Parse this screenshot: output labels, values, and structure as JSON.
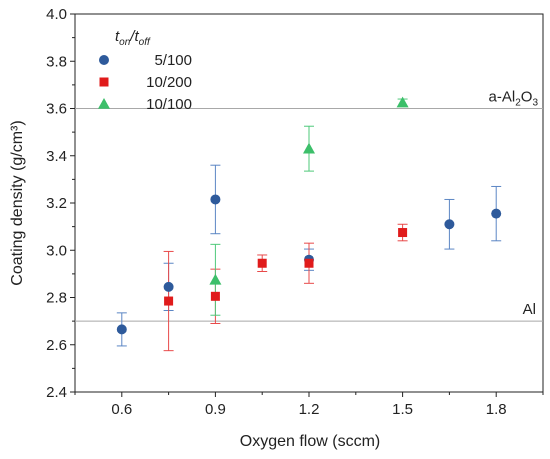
{
  "chart_data": {
    "type": "scatter",
    "xlabel": "Oxygen flow (sccm)",
    "ylabel": "Coating density (g/cm³)",
    "xlim": [
      0.45,
      1.95
    ],
    "ylim": [
      2.4,
      4.0
    ],
    "xticks": [
      "0.6",
      "0.9",
      "1.2",
      "1.5",
      "1.8"
    ],
    "yticks": [
      "2.4",
      "2.6",
      "2.8",
      "3.0",
      "3.2",
      "3.4",
      "3.6",
      "3.8",
      "4.0"
    ],
    "grid": false,
    "legend_placement": "top-left",
    "legend_title": "t_on/t_off",
    "series": [
      {
        "name": "5/100",
        "marker": "circle",
        "color": "#2e5a9b",
        "error_color": "#5b86c4",
        "points": [
          {
            "x": 0.6,
            "y": 2.665,
            "err": 0.07
          },
          {
            "x": 0.75,
            "y": 2.845,
            "err": 0.1
          },
          {
            "x": 0.9,
            "y": 3.215,
            "err": 0.145
          },
          {
            "x": 1.2,
            "y": 2.96,
            "err": 0.045
          },
          {
            "x": 1.65,
            "y": 3.11,
            "err": 0.105
          },
          {
            "x": 1.8,
            "y": 3.155,
            "err": 0.115
          }
        ]
      },
      {
        "name": "10/200",
        "marker": "square",
        "color": "#e01b1b",
        "error_color": "#e84a4a",
        "points": [
          {
            "x": 0.75,
            "y": 2.785,
            "err": 0.21
          },
          {
            "x": 0.9,
            "y": 2.805,
            "err": 0.115
          },
          {
            "x": 1.05,
            "y": 2.945,
            "err": 0.035
          },
          {
            "x": 1.2,
            "y": 2.945,
            "err": 0.085
          },
          {
            "x": 1.5,
            "y": 3.075,
            "err": 0.035
          }
        ]
      },
      {
        "name": "10/100",
        "marker": "triangle",
        "color": "#3cbf6a",
        "error_color": "#4ec97a",
        "points": [
          {
            "x": 0.9,
            "y": 2.875,
            "err": 0.15
          },
          {
            "x": 1.2,
            "y": 3.43,
            "err": 0.095
          },
          {
            "x": 1.5,
            "y": 3.625,
            "err": 0.015
          }
        ]
      }
    ],
    "reference_lines": [
      {
        "y": 3.6,
        "label": "a-Al2O3"
      },
      {
        "y": 2.7,
        "label": "Al"
      }
    ]
  }
}
